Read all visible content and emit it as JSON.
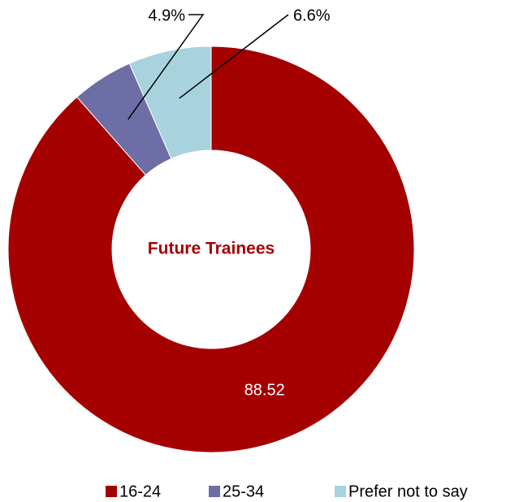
{
  "chart_data": {
    "type": "donut",
    "title": "Future Trainees",
    "categories": [
      "16-24",
      "25-34",
      "Prefer not to say"
    ],
    "values": [
      88.52,
      4.9,
      6.6
    ],
    "value_labels": [
      "88.52",
      "4.9%",
      "6.6%"
    ],
    "colors": [
      "#a50000",
      "#6e6ea6",
      "#a8d3de"
    ],
    "legend": "bottom"
  }
}
